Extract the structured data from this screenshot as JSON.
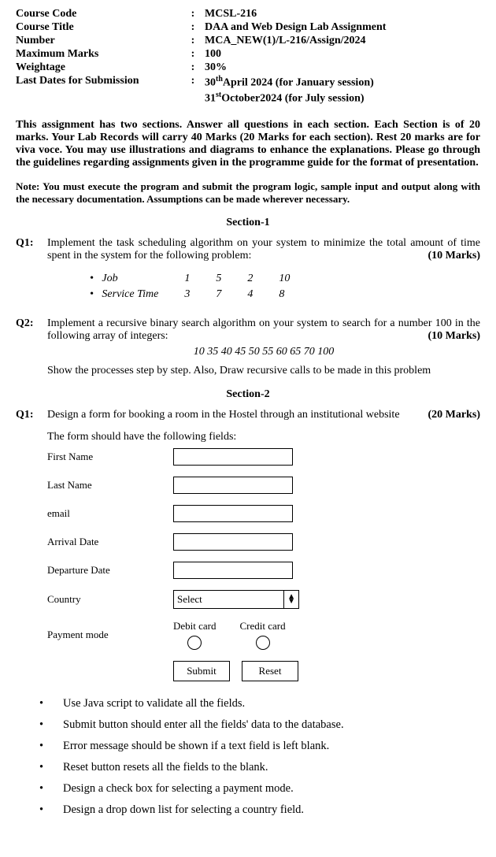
{
  "header": {
    "rows": [
      {
        "label": "Course Code",
        "value": "MCSL-216"
      },
      {
        "label": "Course Title",
        "value": "DAA and Web Design Lab Assignment"
      },
      {
        "label": "Number",
        "value": "MCA_NEW(1)/L-216/Assign/2024"
      },
      {
        "label": "Maximum Marks",
        "value": "100"
      },
      {
        "label": "Weightage",
        "value": "30%"
      },
      {
        "label": "Last Dates for Submission",
        "value_html": "30<sup>th</sup>April 2024 (for January session)"
      },
      {
        "label": "",
        "value_html": "31<sup>st</sup>October2024 (for July session)"
      }
    ]
  },
  "intro": "This assignment has two sections. Answer all questions in each section. Each Section is of 20 marks. Your Lab Records will carry 40 Marks (20 Marks for each section). Rest 20 marks are for viva voce. You may use illustrations and diagrams to enhance the explanations. Please go through the guidelines regarding assignments given in the programme guide for the format of presentation.",
  "note": "Note: You must execute the program and submit the program logic, sample input and output along with the necessary documentation. Assumptions can be made wherever necessary.",
  "section1_title": "Section-1",
  "q1": {
    "label": "Q1:",
    "text": "Implement the task scheduling algorithm on your system to minimize the total amount of time spent in the system for the following problem:",
    "marks": "(10 Marks)",
    "table": {
      "row1_label": "Job",
      "row1_values": [
        "1",
        "5",
        "2",
        "10"
      ],
      "row2_label": "Service Time",
      "row2_values": [
        "3",
        "7",
        "4",
        "8"
      ]
    }
  },
  "q2": {
    "label": "Q2:",
    "text": "Implement a recursive binary search algorithm on your system to search for a number 100 in the following array of integers:",
    "marks": "(10 Marks)",
    "array": "10 35 40 45 50 55 60 65 70 100",
    "followup": "Show the processes step by step. Also, Draw recursive calls to be made in this problem"
  },
  "section2_title": "Section-2",
  "s2q1": {
    "label": "Q1:",
    "text": "Design a form for booking a room in the Hostel through an institutional website",
    "marks": "(20 Marks)",
    "form_intro": "The form should have the following fields:",
    "fields": {
      "fname": "First Name",
      "lname": "Last Name",
      "email": "email",
      "arrival": "Arrival Date",
      "departure": "Departure Date",
      "country": "Country",
      "country_placeholder": "Select",
      "payment": "Payment mode",
      "debit": "Debit card",
      "credit": "Credit card",
      "submit": "Submit",
      "reset": "Reset"
    },
    "requirements": [
      "Use Java script to validate all the fields.",
      "Submit button should enter all the fields' data to the database.",
      "Error message should be shown if a text field is left blank.",
      "Reset button resets all the fields to the blank.",
      "Design a check box for selecting a payment mode.",
      "Design a drop down list for selecting a country field."
    ]
  }
}
